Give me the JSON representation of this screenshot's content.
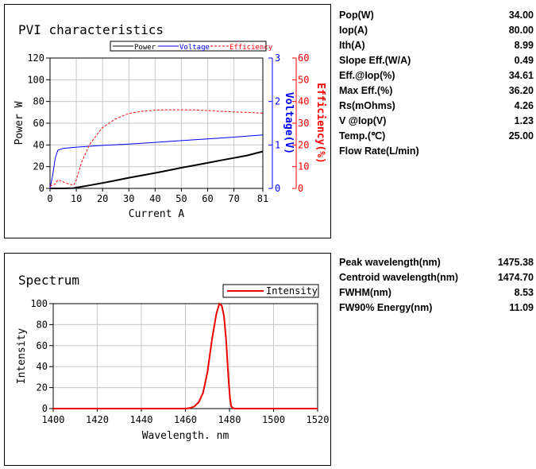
{
  "pvi": {
    "title": "PVI characteristics",
    "params": [
      {
        "label": "Pop(W)",
        "value": "34.00"
      },
      {
        "label": "Iop(A)",
        "value": "80.00"
      },
      {
        "label": "Ith(A)",
        "value": "8.99"
      },
      {
        "label": "Slope Eff.(W/A)",
        "value": "0.49"
      },
      {
        "label": "Eff.@Iop(%)",
        "value": "34.61"
      },
      {
        "label": "Max Eff.(%)",
        "value": "36.20"
      },
      {
        "label": "Rs(mOhms)",
        "value": "4.26"
      },
      {
        "label": "V @Iop(V)",
        "value": "1.23"
      },
      {
        "label": "Temp.(℃)",
        "value": "25.00"
      },
      {
        "label": "Flow Rate(L/min)",
        "value": ""
      }
    ]
  },
  "spectrum": {
    "title": "Spectrum",
    "params": [
      {
        "label": "Peak wavelength(nm)",
        "value": "1475.38"
      },
      {
        "label": "Centroid wavelength(nm)",
        "value": "1474.70"
      },
      {
        "label": "FWHM(nm)",
        "value": "8.53"
      },
      {
        "label": "FW90% Energy(nm)",
        "value": "11.09"
      }
    ]
  },
  "colors": {
    "power": "#000000",
    "voltage": "#0000ff",
    "efficiency": "#ff0000",
    "intensity": "#ee0000",
    "grid": "#c8c8c8"
  },
  "chart_data": [
    {
      "type": "line",
      "title": "PVI characteristics",
      "xlabel": "Current A",
      "ylabel": "Power W",
      "y2label": "Voltage(V)",
      "y3label": "Efficiency(%)",
      "xlim": [
        0,
        81
      ],
      "ylim": [
        0,
        120
      ],
      "y2lim": [
        0,
        3
      ],
      "y3lim": [
        0,
        60
      ],
      "xticks": [
        "0",
        "10",
        "20",
        "30",
        "40",
        "50",
        "60",
        "70",
        "81"
      ],
      "yticks": [
        "0",
        "20",
        "40",
        "60",
        "80",
        "100",
        "120"
      ],
      "y2ticks": [
        "0",
        "1",
        "2",
        "3"
      ],
      "y3ticks": [
        "0",
        "10",
        "20",
        "30",
        "40",
        "50",
        "60"
      ],
      "grid": true,
      "legend": "top",
      "series": [
        {
          "name": "Power",
          "axis": "y",
          "style": "solid",
          "x": [
            0,
            5,
            9,
            12,
            15,
            20,
            25,
            30,
            35,
            40,
            45,
            50,
            55,
            60,
            65,
            70,
            75,
            81
          ],
          "y": [
            0,
            0,
            0.3,
            1.5,
            2.8,
            5,
            7.3,
            9.8,
            12,
            14.2,
            16.5,
            19,
            21.2,
            23.5,
            25.8,
            28,
            30.3,
            34
          ]
        },
        {
          "name": "Voltage",
          "axis": "y2",
          "style": "solid",
          "x": [
            0,
            1,
            2,
            3,
            5,
            10,
            15,
            20,
            30,
            40,
            50,
            60,
            70,
            81
          ],
          "y": [
            0,
            0.3,
            0.7,
            0.88,
            0.92,
            0.95,
            0.97,
            0.99,
            1.02,
            1.06,
            1.1,
            1.14,
            1.18,
            1.23
          ]
        },
        {
          "name": "Efficiency",
          "axis": "y3",
          "style": "dashed",
          "x": [
            0,
            2,
            3,
            5,
            7,
            9,
            10,
            12,
            15,
            18,
            20,
            25,
            30,
            35,
            40,
            45,
            50,
            55,
            60,
            65,
            70,
            75,
            81
          ],
          "y": [
            1,
            2,
            4,
            3,
            2,
            1.5,
            4,
            12,
            20,
            25,
            28,
            32,
            34.5,
            35.5,
            36,
            36.2,
            36.2,
            36.1,
            35.8,
            35.5,
            35.2,
            35,
            34.6
          ]
        }
      ]
    },
    {
      "type": "line",
      "title": "Spectrum",
      "xlabel": "Wavelength. nm",
      "ylabel": "Intensity",
      "xlim": [
        1400,
        1520
      ],
      "ylim": [
        0,
        100
      ],
      "xticks": [
        "1400",
        "1420",
        "1440",
        "1460",
        "1480",
        "1500",
        "1520"
      ],
      "yticks": [
        "0",
        "20",
        "40",
        "60",
        "80",
        "100"
      ],
      "grid": true,
      "legend": "top-right",
      "series": [
        {
          "name": "Intensity",
          "x": [
            1400,
            1460,
            1462,
            1464,
            1466,
            1468,
            1470,
            1472,
            1474,
            1475.4,
            1476.5,
            1477.5,
            1478.5,
            1479.5,
            1480.2,
            1480.8,
            1482,
            1520
          ],
          "y": [
            0,
            0,
            0.5,
            2,
            6,
            15,
            35,
            65,
            90,
            100,
            98,
            88,
            65,
            30,
            10,
            2,
            0,
            0
          ]
        }
      ]
    }
  ]
}
